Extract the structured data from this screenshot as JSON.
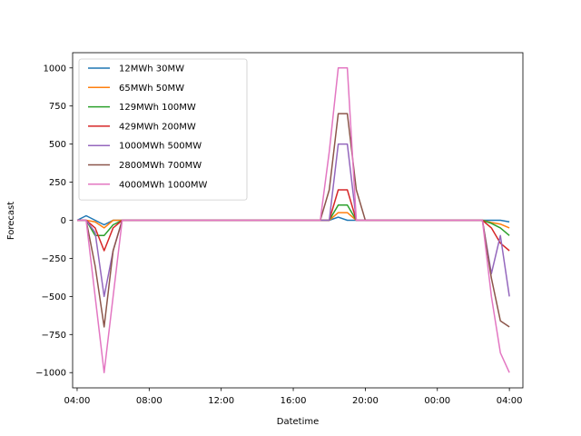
{
  "chart_data": {
    "type": "line",
    "title": "",
    "xlabel": "Datetime",
    "ylabel": "Forecast",
    "ylim": [
      -1100,
      1100
    ],
    "xlim": [
      "03:45",
      "04:45 (+1 day)"
    ],
    "yticks": [
      -1000,
      -750,
      -500,
      -250,
      0,
      250,
      500,
      750,
      1000
    ],
    "yticklabels": [
      "−1000",
      "−750",
      "−500",
      "−250",
      "0",
      "250",
      "500",
      "750",
      "1000"
    ],
    "xticklabels": [
      "04:00",
      "08:00",
      "12:00",
      "16:00",
      "20:00",
      "00:00",
      "04:00"
    ],
    "legend_position": "upper-left",
    "grid": false,
    "x": [
      4.0,
      4.5,
      5.0,
      5.5,
      6.0,
      6.5,
      17.5,
      18.0,
      18.5,
      19.0,
      19.5,
      20.0,
      26.5,
      27.0,
      27.5,
      28.0
    ],
    "series": [
      {
        "name": "12MWh 30MW",
        "color": "#1f77b4",
        "values": [
          0,
          30,
          0,
          -30,
          0,
          0,
          0,
          0,
          20,
          0,
          0,
          0,
          0,
          0,
          0,
          -10
        ]
      },
      {
        "name": "65MWh 50MW",
        "color": "#ff7f0e",
        "values": [
          0,
          0,
          -10,
          -50,
          0,
          0,
          0,
          0,
          50,
          50,
          0,
          0,
          0,
          -15,
          -25,
          -50
        ]
      },
      {
        "name": "129MWh 100MW",
        "color": "#2ca02c",
        "values": [
          0,
          0,
          -100,
          -100,
          -30,
          0,
          0,
          0,
          100,
          100,
          0,
          0,
          0,
          -20,
          -50,
          -100
        ]
      },
      {
        "name": "429MWh 200MW",
        "color": "#d62728",
        "values": [
          0,
          0,
          -50,
          -200,
          -50,
          0,
          0,
          0,
          200,
          200,
          0,
          0,
          0,
          -50,
          -150,
          -200
        ]
      },
      {
        "name": "1000MWh 500MW",
        "color": "#9467bd",
        "values": [
          0,
          0,
          -80,
          -500,
          -200,
          0,
          0,
          0,
          500,
          500,
          0,
          0,
          0,
          -350,
          -100,
          -500
        ]
      },
      {
        "name": "2800MWh 700MW",
        "color": "#8c564b",
        "values": [
          0,
          0,
          -300,
          -700,
          -200,
          0,
          0,
          200,
          700,
          700,
          200,
          0,
          0,
          -380,
          -660,
          -700
        ]
      },
      {
        "name": "4000MWh 1000MW",
        "color": "#e377c2",
        "values": [
          0,
          0,
          -500,
          -1000,
          -500,
          0,
          0,
          450,
          1000,
          1000,
          0,
          0,
          0,
          -500,
          -870,
          -1000
        ]
      }
    ]
  }
}
